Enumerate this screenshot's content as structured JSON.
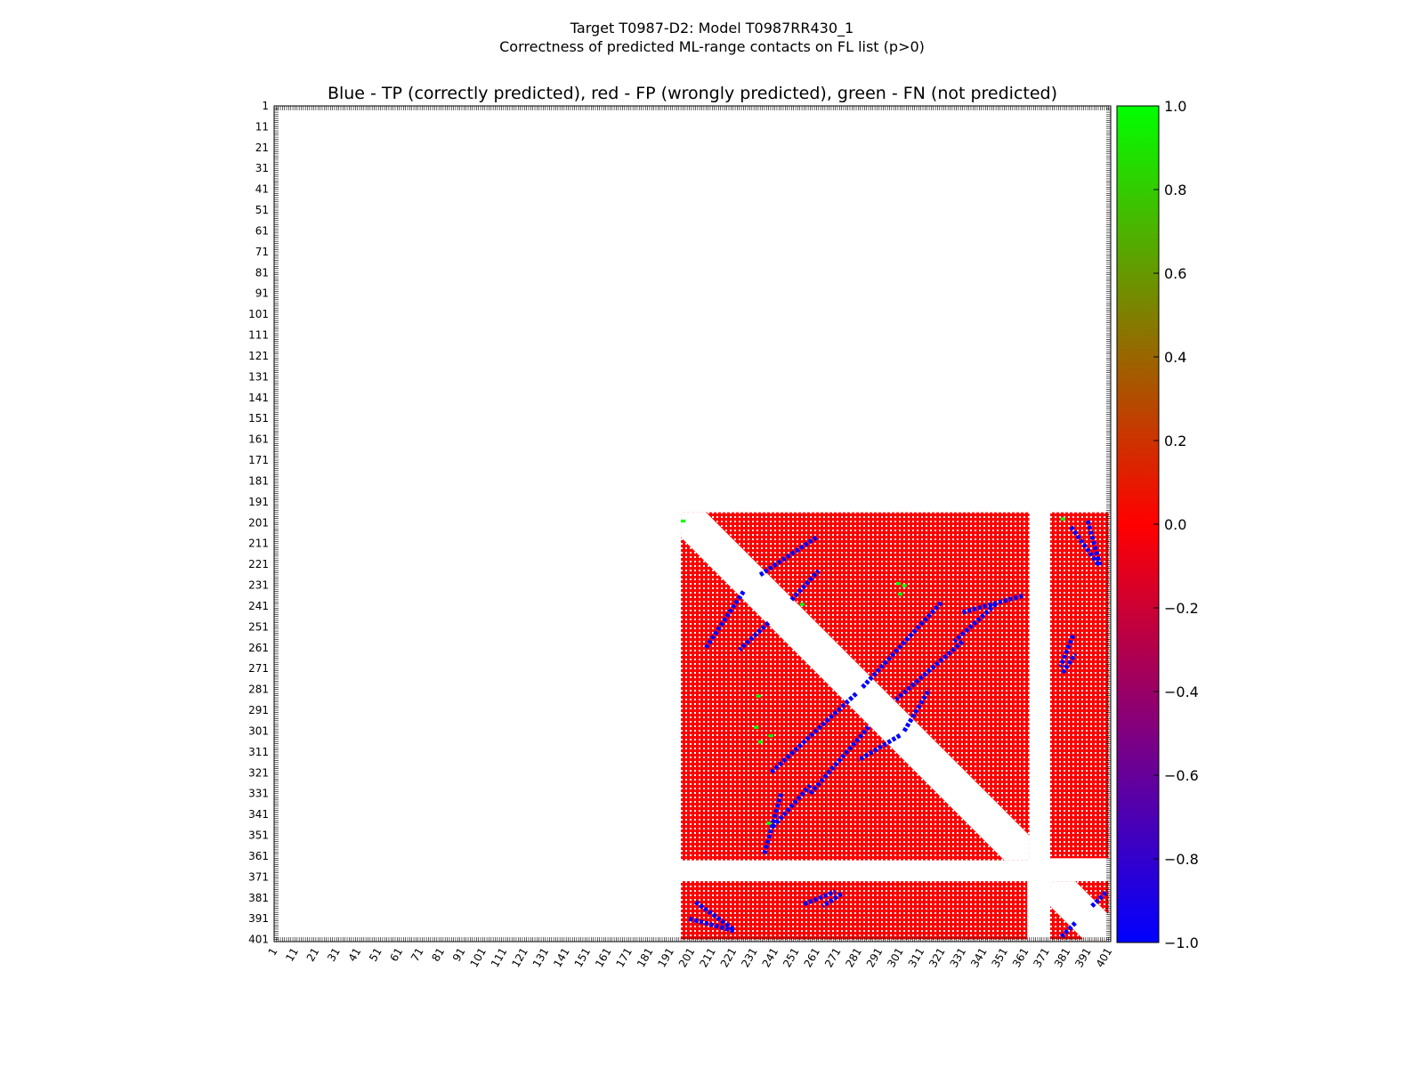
{
  "figure": {
    "title_line1": "Target T0987-D2: Model T0987RR430_1",
    "title_line2": "Correctness of predicted ML-range contacts on FL list (p>0)"
  },
  "chart_data": {
    "type": "heatmap",
    "title": "Blue - TP (correctly predicted), red - FP (wrongly predicted), green - FN (not predicted)",
    "xlabel": "",
    "ylabel": "",
    "xlim": [
      1,
      402
    ],
    "ylim": [
      402,
      1
    ],
    "x_tick_labels": [
      "1",
      "11",
      "21",
      "31",
      "41",
      "51",
      "61",
      "71",
      "81",
      "91",
      "101",
      "111",
      "121",
      "131",
      "141",
      "151",
      "161",
      "171",
      "181",
      "191",
      "201",
      "211",
      "221",
      "231",
      "241",
      "251",
      "261",
      "271",
      "281",
      "291",
      "301",
      "311",
      "321",
      "331",
      "341",
      "351",
      "361",
      "371",
      "381",
      "391",
      "401"
    ],
    "y_tick_labels": [
      "1",
      "11",
      "21",
      "31",
      "41",
      "51",
      "61",
      "71",
      "81",
      "91",
      "101",
      "111",
      "121",
      "131",
      "141",
      "151",
      "161",
      "171",
      "181",
      "191",
      "201",
      "211",
      "221",
      "231",
      "241",
      "251",
      "261",
      "271",
      "281",
      "291",
      "301",
      "311",
      "321",
      "331",
      "341",
      "351",
      "361",
      "371",
      "381",
      "391",
      "401"
    ],
    "colorbar": {
      "range": [
        -1.0,
        1.0
      ],
      "tick_labels": [
        "1.0",
        "0.8",
        "0.6",
        "0.4",
        "0.2",
        "0.0",
        "−0.2",
        "−0.4",
        "−0.6",
        "−0.8",
        "−1.0"
      ],
      "colors": [
        "#00ff00",
        "#ff0000",
        "#0000ff"
      ]
    },
    "legend": {
      "tp": {
        "value": -1,
        "color": "#0000ff"
      },
      "fp": {
        "value": 0,
        "color": "#ff0000"
      },
      "fn": {
        "value": 1,
        "color": "#00ff00"
      }
    },
    "domain_blocks": [
      {
        "start": 196,
        "end": 363
      },
      {
        "start": 373,
        "end": 401
      },
      {
        "start": 196,
        "end": 362,
        "cross_start": 373,
        "cross_end": 401
      }
    ],
    "tp_diagonals": [
      {
        "from": [
          234,
          226
        ],
        "to": [
          261,
          208
        ]
      },
      {
        "from": [
          238,
          249
        ],
        "to": [
          224,
          262
        ]
      },
      {
        "from": [
          283,
          280
        ],
        "to": [
          321,
          239
        ]
      },
      {
        "from": [
          301,
          303
        ],
        "to": [
          281,
          315
        ]
      },
      {
        "from": [
          331,
          244
        ],
        "to": [
          360,
          236
        ]
      },
      {
        "from": [
          258,
          331
        ],
        "to": [
          286,
          299
        ]
      },
      {
        "from": [
          347,
          240
        ],
        "to": [
          327,
          258
        ]
      },
      {
        "from": [
          383,
          203
        ],
        "to": [
          396,
          221
        ]
      },
      {
        "from": [
          379,
          273
        ],
        "to": [
          385,
          264
        ]
      },
      {
        "from": [
          393,
          385
        ],
        "to": [
          400,
          378
        ]
      },
      {
        "from": [
          200,
          391
        ],
        "to": [
          222,
          397
        ]
      },
      {
        "from": [
          255,
          384
        ],
        "to": [
          270,
          378
        ]
      }
    ],
    "fn_points": [
      [
        300,
        230
      ],
      [
        303,
        231
      ],
      [
        301,
        235
      ],
      [
        232,
        299
      ],
      [
        234,
        306
      ],
      [
        239,
        303
      ],
      [
        233,
        284
      ],
      [
        238,
        345
      ],
      [
        197,
        200
      ],
      [
        379,
        199
      ],
      [
        254,
        240
      ]
    ]
  }
}
